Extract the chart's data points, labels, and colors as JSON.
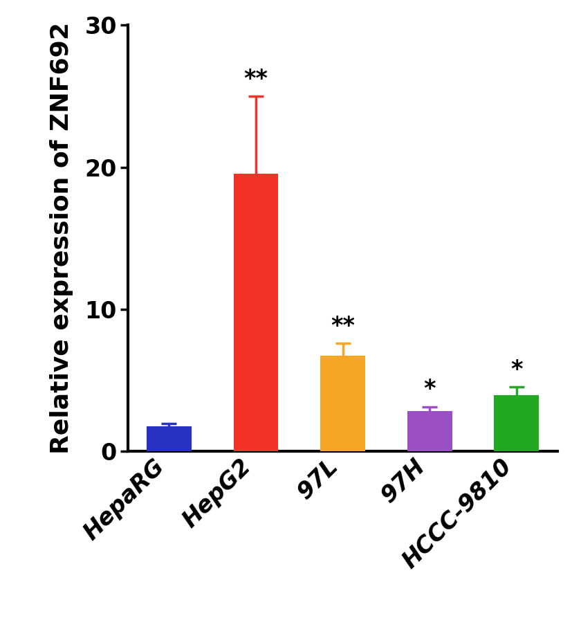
{
  "categories": [
    "HepaRG",
    "HepG2",
    "97L",
    "97H",
    "HCCC-9810"
  ],
  "values": [
    1.7,
    19.5,
    6.7,
    2.8,
    3.9
  ],
  "errors": [
    0.25,
    5.5,
    0.9,
    0.35,
    0.65
  ],
  "bar_colors": [
    "#2832c2",
    "#f03228",
    "#f5a623",
    "#9b4fc5",
    "#22a822"
  ],
  "significance": [
    "",
    "**",
    "**",
    "*",
    "*"
  ],
  "ylabel": "Relative expression of ZNF692",
  "ylim": [
    0,
    30
  ],
  "yticks": [
    0,
    10,
    20,
    30
  ],
  "ylabel_fontsize": 26,
  "tick_fontsize": 24,
  "sig_fontsize": 24,
  "bar_width": 0.5,
  "error_capsize": 8,
  "error_linewidth": 2.5
}
